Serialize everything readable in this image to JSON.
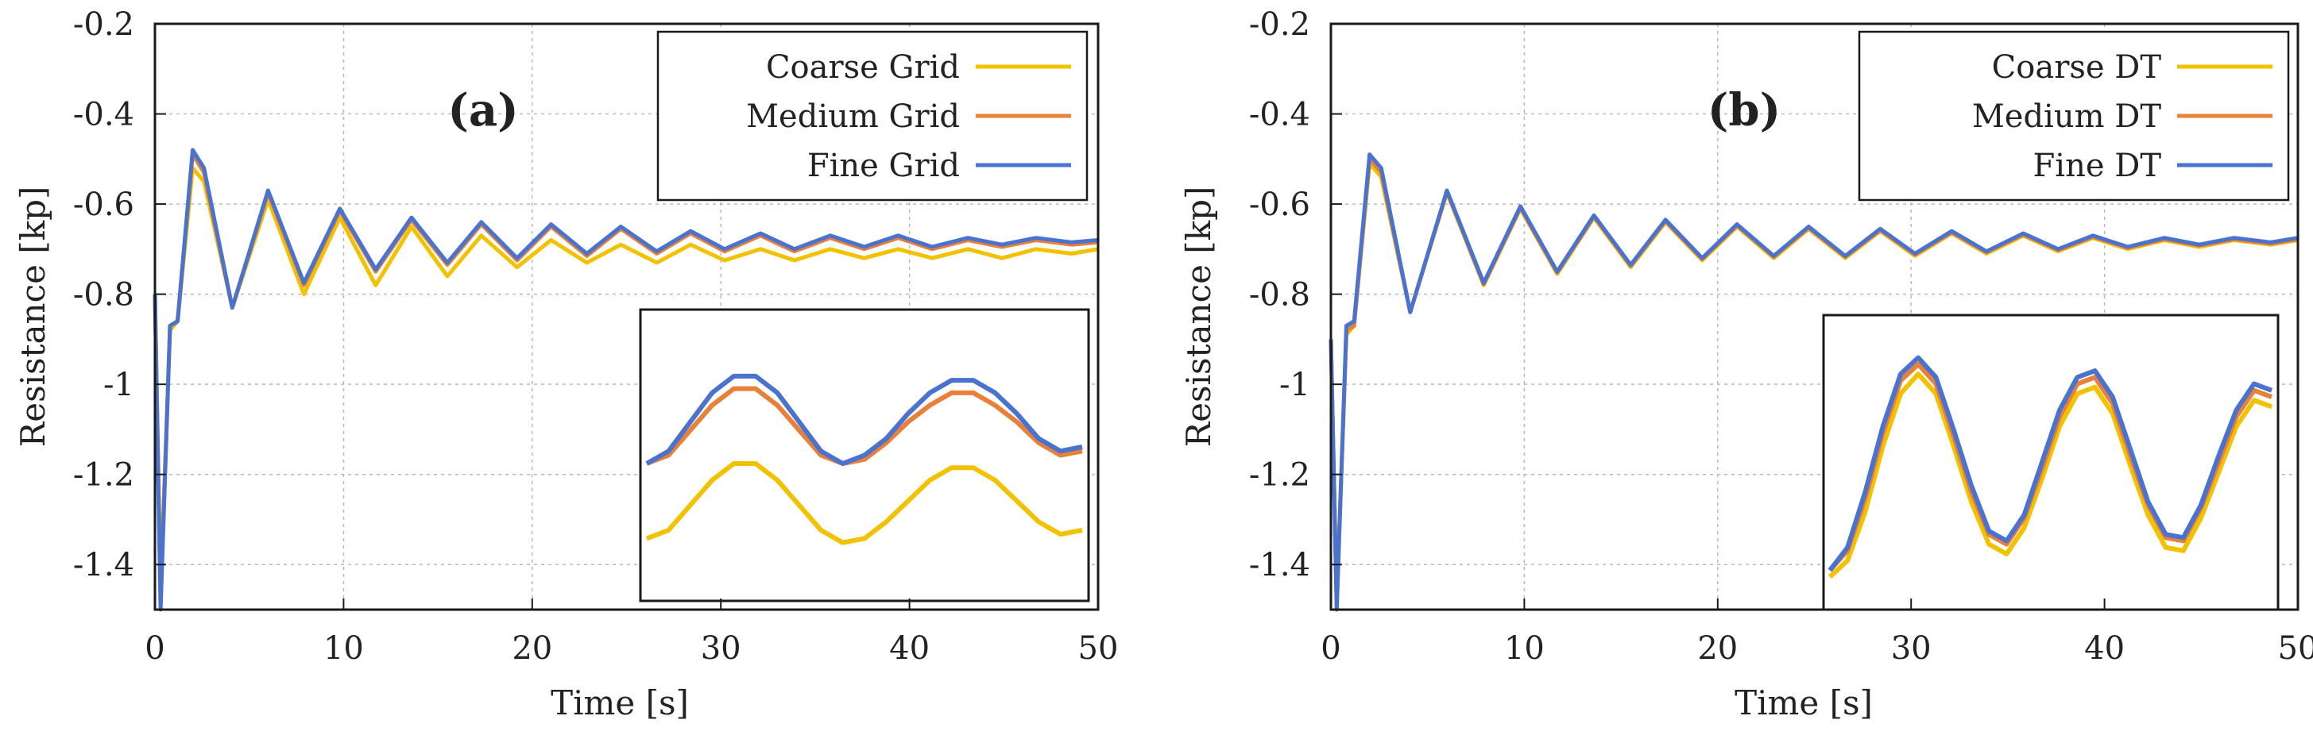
{
  "colors": {
    "coarse": "#f2c100",
    "medium": "#e8803a",
    "fine": "#4a72cf",
    "grid": "#b9b9b9",
    "frame": "#1a1a1a"
  },
  "chart_data": [
    {
      "type": "line",
      "panel_label": "(a)",
      "xlabel": "Time [s]",
      "ylabel": "Resistance [kp]",
      "xlim": [
        0,
        50
      ],
      "ylim": [
        -1.5,
        -0.2
      ],
      "grid": true,
      "legend_position": "top-right",
      "x_ticks": [
        0,
        10,
        20,
        30,
        40,
        50
      ],
      "x_tick_labels": [
        "0",
        "10",
        "20",
        "30",
        "40",
        "50"
      ],
      "y_ticks": [
        -1.4,
        -1.2,
        -1.0,
        -0.8,
        -0.6,
        -0.4,
        -0.2
      ],
      "y_tick_labels": [
        "-1.4",
        "-1.2",
        "-1",
        "-0.8",
        "-0.6",
        "-0.4",
        "-0.2"
      ],
      "series": [
        {
          "name": "Coarse Grid",
          "color_key": "coarse",
          "x": [
            0,
            0.3,
            0.8,
            1.2,
            2.0,
            2.6,
            4.1,
            6.0,
            7.9,
            9.8,
            11.7,
            13.6,
            15.5,
            17.3,
            19.2,
            21.0,
            22.9,
            24.7,
            26.6,
            28.4,
            30.2,
            32.1,
            33.9,
            35.8,
            37.6,
            39.4,
            41.2,
            43.1,
            44.9,
            46.7,
            48.6,
            50.0
          ],
          "y": [
            -0.8,
            -1.45,
            -0.88,
            -0.86,
            -0.52,
            -0.55,
            -0.83,
            -0.59,
            -0.8,
            -0.63,
            -0.78,
            -0.65,
            -0.76,
            -0.67,
            -0.74,
            -0.68,
            -0.73,
            -0.69,
            -0.73,
            -0.69,
            -0.725,
            -0.7,
            -0.725,
            -0.7,
            -0.72,
            -0.7,
            -0.72,
            -0.7,
            -0.72,
            -0.7,
            -0.71,
            -0.7
          ]
        },
        {
          "name": "Medium Grid",
          "color_key": "medium",
          "x": [
            0,
            0.3,
            0.8,
            1.2,
            2.0,
            2.6,
            4.1,
            6.0,
            7.9,
            9.8,
            11.7,
            13.6,
            15.5,
            17.3,
            19.2,
            21.0,
            22.9,
            24.7,
            26.6,
            28.4,
            30.2,
            32.1,
            33.9,
            35.8,
            37.6,
            39.4,
            41.2,
            43.1,
            44.9,
            46.7,
            48.6,
            50.0
          ],
          "y": [
            -0.8,
            -1.48,
            -0.87,
            -0.86,
            -0.49,
            -0.53,
            -0.83,
            -0.575,
            -0.78,
            -0.615,
            -0.75,
            -0.635,
            -0.735,
            -0.645,
            -0.725,
            -0.65,
            -0.715,
            -0.655,
            -0.71,
            -0.665,
            -0.705,
            -0.67,
            -0.705,
            -0.675,
            -0.7,
            -0.675,
            -0.7,
            -0.68,
            -0.695,
            -0.68,
            -0.69,
            -0.685
          ]
        },
        {
          "name": "Fine Grid",
          "color_key": "fine",
          "x": [
            0,
            0.3,
            0.8,
            1.2,
            2.0,
            2.6,
            4.1,
            6.0,
            7.9,
            9.8,
            11.7,
            13.6,
            15.5,
            17.3,
            19.2,
            21.0,
            22.9,
            24.7,
            26.6,
            28.4,
            30.2,
            32.1,
            33.9,
            35.8,
            37.6,
            39.4,
            41.2,
            43.1,
            44.9,
            46.7,
            48.6,
            50.0
          ],
          "y": [
            -0.8,
            -1.5,
            -0.87,
            -0.86,
            -0.48,
            -0.52,
            -0.83,
            -0.57,
            -0.775,
            -0.61,
            -0.745,
            -0.63,
            -0.73,
            -0.64,
            -0.72,
            -0.645,
            -0.71,
            -0.65,
            -0.705,
            -0.66,
            -0.7,
            -0.665,
            -0.7,
            -0.67,
            -0.695,
            -0.67,
            -0.695,
            -0.675,
            -0.69,
            -0.675,
            -0.685,
            -0.68
          ]
        }
      ],
      "inset": {
        "x": [
          30,
          31,
          32,
          33,
          34,
          35,
          36,
          37,
          38,
          39,
          40,
          41,
          42,
          43,
          44,
          45,
          46,
          47,
          48,
          49,
          50
        ],
        "coarse": [
          -0.715,
          -0.713,
          -0.707,
          -0.701,
          -0.697,
          -0.697,
          -0.701,
          -0.707,
          -0.713,
          -0.716,
          -0.715,
          -0.711,
          -0.706,
          -0.701,
          -0.698,
          -0.698,
          -0.701,
          -0.706,
          -0.711,
          -0.714,
          -0.713
        ],
        "medium": [
          -0.697,
          -0.695,
          -0.689,
          -0.683,
          -0.679,
          -0.679,
          -0.683,
          -0.689,
          -0.695,
          -0.697,
          -0.696,
          -0.692,
          -0.687,
          -0.683,
          -0.68,
          -0.68,
          -0.683,
          -0.687,
          -0.692,
          -0.695,
          -0.694
        ],
        "fine": [
          -0.697,
          -0.694,
          -0.687,
          -0.68,
          -0.676,
          -0.676,
          -0.68,
          -0.687,
          -0.694,
          -0.697,
          -0.695,
          -0.691,
          -0.685,
          -0.68,
          -0.677,
          -0.677,
          -0.68,
          -0.685,
          -0.691,
          -0.694,
          -0.693
        ],
        "ylim": [
          -0.73,
          -0.66
        ]
      }
    },
    {
      "type": "line",
      "panel_label": "(b)",
      "xlabel": "Time [s]",
      "ylabel": "Resistance [kp]",
      "xlim": [
        0,
        50
      ],
      "ylim": [
        -1.5,
        -0.2
      ],
      "grid": true,
      "legend_position": "top-right",
      "x_ticks": [
        0,
        10,
        20,
        30,
        40,
        50
      ],
      "x_tick_labels": [
        "0",
        "10",
        "20",
        "30",
        "40",
        "50"
      ],
      "y_ticks": [
        -1.4,
        -1.2,
        -1.0,
        -0.8,
        -0.6,
        -0.4,
        -0.2
      ],
      "y_tick_labels": [
        "-1.4",
        "-1.2",
        "-1",
        "-0.8",
        "-0.6",
        "-0.4",
        "-0.2"
      ],
      "series": [
        {
          "name": "Coarse DT",
          "color_key": "coarse",
          "x": [
            0,
            0.3,
            0.8,
            1.2,
            2.0,
            2.6,
            4.1,
            6.0,
            7.9,
            9.8,
            11.7,
            13.6,
            15.5,
            17.3,
            19.2,
            21.0,
            22.9,
            24.7,
            26.6,
            28.4,
            30.2,
            32.1,
            33.9,
            35.8,
            37.6,
            39.4,
            41.2,
            43.1,
            44.9,
            46.7,
            48.6,
            50.0
          ],
          "y": [
            -0.9,
            -1.48,
            -0.89,
            -0.87,
            -0.51,
            -0.54,
            -0.84,
            -0.575,
            -0.78,
            -0.61,
            -0.755,
            -0.63,
            -0.74,
            -0.64,
            -0.725,
            -0.65,
            -0.72,
            -0.655,
            -0.72,
            -0.66,
            -0.715,
            -0.665,
            -0.71,
            -0.67,
            -0.705,
            -0.675,
            -0.7,
            -0.68,
            -0.695,
            -0.68,
            -0.69,
            -0.68
          ]
        },
        {
          "name": "Medium DT",
          "color_key": "medium",
          "x": [
            0,
            0.3,
            0.8,
            1.2,
            2.0,
            2.6,
            4.1,
            6.0,
            7.9,
            9.8,
            11.7,
            13.6,
            15.5,
            17.3,
            19.2,
            21.0,
            22.9,
            24.7,
            26.6,
            28.4,
            30.2,
            32.1,
            33.9,
            35.8,
            37.6,
            39.4,
            41.2,
            43.1,
            44.9,
            46.7,
            48.6,
            50.0
          ],
          "y": [
            -0.9,
            -1.49,
            -0.88,
            -0.87,
            -0.5,
            -0.53,
            -0.84,
            -0.572,
            -0.778,
            -0.608,
            -0.752,
            -0.628,
            -0.737,
            -0.638,
            -0.722,
            -0.648,
            -0.717,
            -0.653,
            -0.717,
            -0.658,
            -0.712,
            -0.663,
            -0.707,
            -0.668,
            -0.702,
            -0.673,
            -0.697,
            -0.678,
            -0.692,
            -0.678,
            -0.688,
            -0.678
          ]
        },
        {
          "name": "Fine DT",
          "color_key": "fine",
          "x": [
            0,
            0.3,
            0.8,
            1.2,
            2.0,
            2.6,
            4.1,
            6.0,
            7.9,
            9.8,
            11.7,
            13.6,
            15.5,
            17.3,
            19.2,
            21.0,
            22.9,
            24.7,
            26.6,
            28.4,
            30.2,
            32.1,
            33.9,
            35.8,
            37.6,
            39.4,
            41.2,
            43.1,
            44.9,
            46.7,
            48.6,
            50.0
          ],
          "y": [
            -0.9,
            -1.5,
            -0.87,
            -0.86,
            -0.49,
            -0.52,
            -0.84,
            -0.57,
            -0.775,
            -0.605,
            -0.75,
            -0.625,
            -0.735,
            -0.635,
            -0.72,
            -0.645,
            -0.715,
            -0.65,
            -0.715,
            -0.655,
            -0.71,
            -0.66,
            -0.705,
            -0.665,
            -0.7,
            -0.67,
            -0.695,
            -0.675,
            -0.69,
            -0.675,
            -0.685,
            -0.675
          ]
        }
      ],
      "inset": {
        "x": [
          25,
          26,
          27,
          28,
          29,
          30,
          31,
          32,
          33,
          34,
          35,
          36,
          37,
          38,
          39,
          40,
          41,
          42,
          43,
          44,
          45,
          46,
          47,
          48,
          49,
          50
        ],
        "coarse": [
          -0.72,
          -0.715,
          -0.7,
          -0.68,
          -0.664,
          -0.658,
          -0.664,
          -0.68,
          -0.697,
          -0.71,
          -0.713,
          -0.705,
          -0.69,
          -0.674,
          -0.664,
          -0.662,
          -0.67,
          -0.686,
          -0.701,
          -0.711,
          -0.712,
          -0.702,
          -0.688,
          -0.674,
          -0.666,
          -0.668
        ],
        "medium": [
          -0.718,
          -0.712,
          -0.696,
          -0.676,
          -0.66,
          -0.655,
          -0.661,
          -0.677,
          -0.694,
          -0.707,
          -0.71,
          -0.702,
          -0.687,
          -0.671,
          -0.661,
          -0.659,
          -0.667,
          -0.683,
          -0.698,
          -0.708,
          -0.709,
          -0.699,
          -0.685,
          -0.671,
          -0.663,
          -0.665
        ],
        "fine": [
          -0.718,
          -0.711,
          -0.694,
          -0.674,
          -0.658,
          -0.653,
          -0.659,
          -0.675,
          -0.692,
          -0.706,
          -0.709,
          -0.701,
          -0.685,
          -0.669,
          -0.659,
          -0.657,
          -0.665,
          -0.681,
          -0.697,
          -0.707,
          -0.708,
          -0.698,
          -0.683,
          -0.669,
          -0.661,
          -0.663
        ],
        "ylim": [
          -0.73,
          -0.64
        ]
      }
    }
  ]
}
